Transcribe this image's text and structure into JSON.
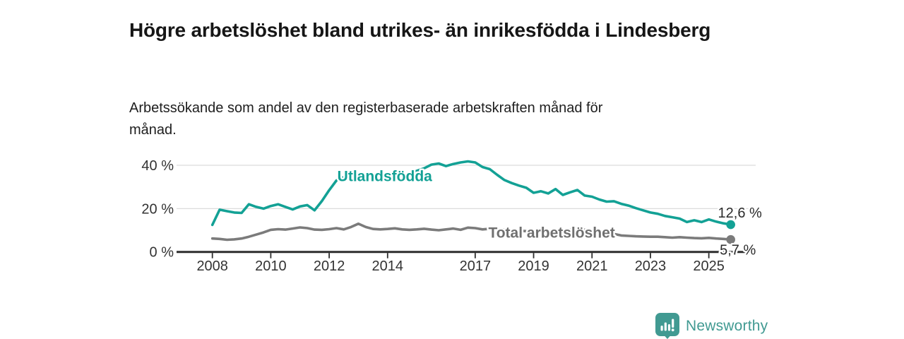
{
  "title": "Högre arbetslöshet bland utrikes- än inrikesfödda i Lindesberg",
  "subtitle": "Arbetssökande som andel av den registerbaserade arbetskraften månad för månad.",
  "branding": {
    "name": "Newsworthy",
    "color": "#419a92"
  },
  "colors": {
    "foreign_born_line": "#13a195",
    "total_line": "#7b7b7b",
    "grid": "#dcdcdc",
    "axis": "#2d2d2d",
    "tick_label": "#333333",
    "annotation_text": "#2b2b2b",
    "background": "#ffffff"
  },
  "chart_data": {
    "type": "line",
    "title": "Högre arbetslöshet bland utrikes- än inrikesfödda i Lindesberg",
    "xlabel": "",
    "ylabel": "Arbetssökande som andel av den registerbaserade arbetskraften",
    "grid": "horizontal",
    "legend_position": "inline-labels",
    "xlim": [
      2007.85,
      2026.3
    ],
    "ylim": [
      0,
      44
    ],
    "xticks": [
      2008,
      2010,
      2012,
      2014,
      2017,
      2019,
      2021,
      2023,
      2025
    ],
    "yticks": [
      {
        "value": 0,
        "label": "0 %"
      },
      {
        "value": 20,
        "label": "20 %"
      },
      {
        "value": 40,
        "label": "40 %"
      }
    ],
    "x": [
      2008,
      2008.25,
      2008.5,
      2008.75,
      2009,
      2009.25,
      2009.5,
      2009.75,
      2010,
      2010.25,
      2010.5,
      2010.75,
      2011,
      2011.25,
      2011.5,
      2011.75,
      2012,
      2012.25,
      2012.5,
      2012.75,
      2013,
      2013.25,
      2013.5,
      2013.75,
      2014,
      2014.25,
      2014.5,
      2014.75,
      2015,
      2015.25,
      2015.5,
      2015.75,
      2016,
      2016.25,
      2016.5,
      2016.75,
      2017,
      2017.25,
      2017.5,
      2017.75,
      2018,
      2018.25,
      2018.5,
      2018.75,
      2019,
      2019.25,
      2019.5,
      2019.75,
      2020,
      2020.25,
      2020.5,
      2020.75,
      2021,
      2021.25,
      2021.5,
      2021.75,
      2022,
      2022.25,
      2022.5,
      2022.75,
      2023,
      2023.25,
      2023.5,
      2023.75,
      2024,
      2024.25,
      2024.5,
      2024.75,
      2025,
      2025.25,
      2025.5,
      2025.75
    ],
    "series": [
      {
        "key": "utlandsfodda",
        "name": "Utlandsfödda",
        "color": "#13a195",
        "label_color": "#13a195",
        "end_label": "12,6 %",
        "end_value": 12.6,
        "label_anchor": {
          "x": 2012.28,
          "y": 32.6
        },
        "values": [
          12.5,
          19.5,
          18.8,
          18.2,
          18.0,
          22.0,
          20.8,
          20.0,
          21.2,
          22.0,
          20.8,
          19.6,
          21.0,
          21.6,
          19.2,
          23.5,
          28.5,
          33.0,
          34.5,
          33.6,
          33.2,
          34.2,
          33.6,
          32.8,
          33.4,
          34.3,
          35.3,
          36.3,
          37.4,
          38.6,
          40.3,
          40.8,
          39.6,
          40.6,
          41.3,
          41.8,
          41.3,
          39.2,
          38.2,
          35.6,
          33.2,
          31.8,
          30.6,
          29.6,
          27.3,
          28.0,
          27.0,
          29.0,
          26.3,
          27.5,
          28.6,
          26.0,
          25.5,
          24.2,
          23.2,
          23.4,
          22.2,
          21.4,
          20.2,
          19.2,
          18.2,
          17.6,
          16.6,
          16.0,
          15.4,
          13.8,
          14.6,
          13.8,
          15.0,
          14.0,
          13.2,
          12.6
        ]
      },
      {
        "key": "total-arbetsloshet",
        "name": "Total arbetslöshet",
        "color": "#7b7b7b",
        "label_color": "#707070",
        "end_label": "5,7 %",
        "end_value": 5.7,
        "label_anchor": {
          "x": 2017.45,
          "y": 6.6
        },
        "values": [
          6.2,
          6.0,
          5.6,
          5.8,
          6.2,
          7.0,
          8.0,
          9.0,
          10.2,
          10.5,
          10.3,
          10.8,
          11.3,
          11.0,
          10.3,
          10.2,
          10.5,
          11.0,
          10.4,
          11.5,
          13.0,
          11.5,
          10.6,
          10.4,
          10.6,
          10.9,
          10.4,
          10.2,
          10.4,
          10.7,
          10.3,
          10.0,
          10.4,
          10.8,
          10.2,
          11.2,
          11.0,
          10.4,
          10.7,
          10.5,
          10.3,
          10.0,
          9.8,
          9.6,
          9.5,
          9.4,
          9.3,
          9.5,
          9.8,
          10.3,
          10.5,
          10.2,
          9.8,
          9.3,
          8.8,
          8.3,
          7.6,
          7.4,
          7.2,
          7.1,
          7.0,
          7.0,
          6.8,
          6.6,
          6.8,
          6.6,
          6.4,
          6.3,
          6.5,
          6.2,
          6.0,
          5.7
        ]
      }
    ]
  }
}
